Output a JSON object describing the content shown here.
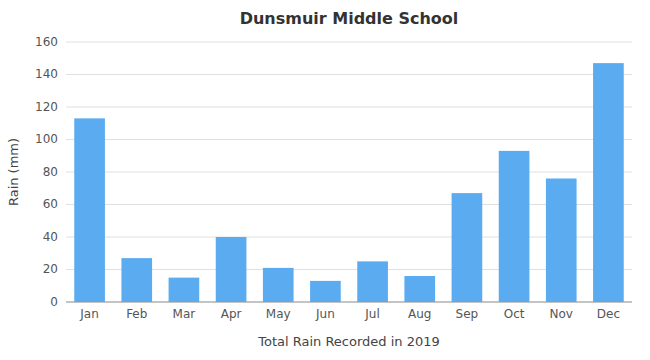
{
  "chart_data": {
    "type": "bar",
    "title": "Dunsmuir Middle School",
    "xlabel": "Total Rain Recorded in 2019",
    "ylabel": "Rain (mm)",
    "categories": [
      "Jan",
      "Feb",
      "Mar",
      "Apr",
      "May",
      "Jun",
      "Jul",
      "Aug",
      "Sep",
      "Oct",
      "Nov",
      "Dec"
    ],
    "values": [
      113,
      27,
      15,
      40,
      21,
      13,
      25,
      16,
      67,
      93,
      76,
      147
    ],
    "color": "#5aabf0",
    "ylim": [
      0,
      160
    ],
    "yticks": [
      0,
      20,
      40,
      60,
      80,
      100,
      120,
      140,
      160
    ],
    "grid": true
  }
}
